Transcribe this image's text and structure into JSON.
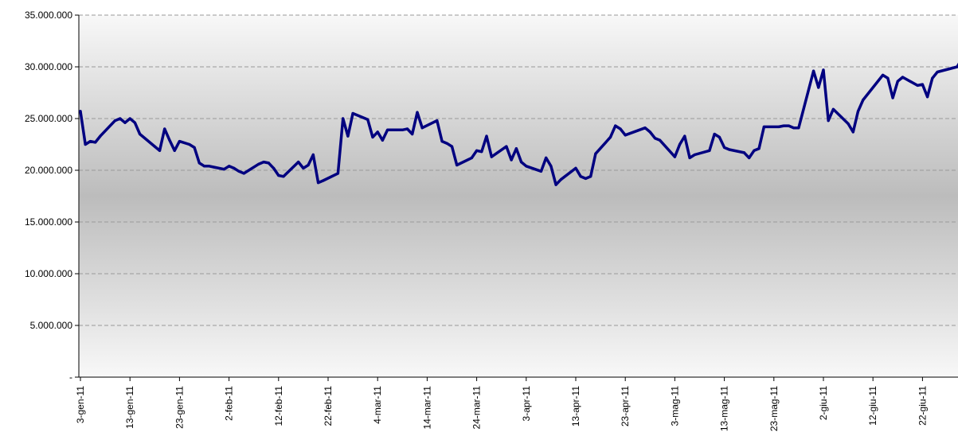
{
  "chart_data": {
    "type": "line",
    "title": "",
    "xlabel": "",
    "ylabel": "",
    "ylim": [
      0,
      35000000
    ],
    "y_ticks": [
      {
        "value": 0,
        "label": "-"
      },
      {
        "value": 5000000,
        "label": "5.000.000"
      },
      {
        "value": 10000000,
        "label": "10.000.000"
      },
      {
        "value": 15000000,
        "label": "15.000.000"
      },
      {
        "value": 20000000,
        "label": "20.000.000"
      },
      {
        "value": 25000000,
        "label": "25.000.000"
      },
      {
        "value": 30000000,
        "label": "30.000.000"
      },
      {
        "value": 35000000,
        "label": "35.000.000"
      }
    ],
    "x_range": [
      "2011-01-03",
      "2011-06-30"
    ],
    "x_ticks": [
      {
        "date": "2011-01-03",
        "label": "3-gen-11"
      },
      {
        "date": "2011-01-13",
        "label": "13-gen-11"
      },
      {
        "date": "2011-01-23",
        "label": "23-gen-11"
      },
      {
        "date": "2011-02-02",
        "label": "2-feb-11"
      },
      {
        "date": "2011-02-12",
        "label": "12-feb-11"
      },
      {
        "date": "2011-02-22",
        "label": "22-feb-11"
      },
      {
        "date": "2011-03-04",
        "label": "4-mar-11"
      },
      {
        "date": "2011-03-14",
        "label": "14-mar-11"
      },
      {
        "date": "2011-03-24",
        "label": "24-mar-11"
      },
      {
        "date": "2011-04-03",
        "label": "3-apr-11"
      },
      {
        "date": "2011-04-13",
        "label": "13-apr-11"
      },
      {
        "date": "2011-04-23",
        "label": "23-apr-11"
      },
      {
        "date": "2011-05-03",
        "label": "3-mag-11"
      },
      {
        "date": "2011-05-13",
        "label": "13-mag-11"
      },
      {
        "date": "2011-05-23",
        "label": "23-mag-11"
      },
      {
        "date": "2011-06-02",
        "label": "2-giu-11"
      },
      {
        "date": "2011-06-12",
        "label": "12-giu-11"
      },
      {
        "date": "2011-06-22",
        "label": "22-giu-11"
      }
    ],
    "grid": true,
    "colors": {
      "line": "#000080",
      "grid": "#9a9a9a",
      "axis": "#000000",
      "bg_edge": "#f8f8f8",
      "bg_center": "#bcbcbc"
    },
    "series": [
      {
        "points": [
          [
            "2011-01-03",
            25700000
          ],
          [
            "2011-01-04",
            22500000
          ],
          [
            "2011-01-05",
            22800000
          ],
          [
            "2011-01-06",
            22700000
          ],
          [
            "2011-01-07",
            23300000
          ],
          [
            "2011-01-10",
            24800000
          ],
          [
            "2011-01-11",
            25000000
          ],
          [
            "2011-01-12",
            24600000
          ],
          [
            "2011-01-13",
            25000000
          ],
          [
            "2011-01-14",
            24600000
          ],
          [
            "2011-01-15",
            23500000
          ],
          [
            "2011-01-18",
            22300000
          ],
          [
            "2011-01-19",
            21900000
          ],
          [
            "2011-01-20",
            24000000
          ],
          [
            "2011-01-21",
            22900000
          ],
          [
            "2011-01-22",
            21900000
          ],
          [
            "2011-01-23",
            22800000
          ],
          [
            "2011-01-25",
            22500000
          ],
          [
            "2011-01-26",
            22200000
          ],
          [
            "2011-01-27",
            20700000
          ],
          [
            "2011-01-28",
            20400000
          ],
          [
            "2011-01-29",
            20400000
          ],
          [
            "2011-01-30",
            20300000
          ],
          [
            "2011-02-01",
            20100000
          ],
          [
            "2011-02-02",
            20400000
          ],
          [
            "2011-02-03",
            20200000
          ],
          [
            "2011-02-04",
            19900000
          ],
          [
            "2011-02-05",
            19700000
          ],
          [
            "2011-02-08",
            20600000
          ],
          [
            "2011-02-09",
            20800000
          ],
          [
            "2011-02-10",
            20700000
          ],
          [
            "2011-02-11",
            20200000
          ],
          [
            "2011-02-12",
            19500000
          ],
          [
            "2011-02-13",
            19400000
          ],
          [
            "2011-02-16",
            20800000
          ],
          [
            "2011-02-17",
            20200000
          ],
          [
            "2011-02-18",
            20500000
          ],
          [
            "2011-02-19",
            21500000
          ],
          [
            "2011-02-20",
            18800000
          ],
          [
            "2011-02-21",
            19000000
          ],
          [
            "2011-02-24",
            19700000
          ],
          [
            "2011-02-25",
            25000000
          ],
          [
            "2011-02-26",
            23300000
          ],
          [
            "2011-02-27",
            25500000
          ],
          [
            "2011-03-02",
            24900000
          ],
          [
            "2011-03-03",
            23200000
          ],
          [
            "2011-03-04",
            23700000
          ],
          [
            "2011-03-05",
            22900000
          ],
          [
            "2011-03-06",
            23900000
          ],
          [
            "2011-03-09",
            23900000
          ],
          [
            "2011-03-10",
            24000000
          ],
          [
            "2011-03-11",
            23500000
          ],
          [
            "2011-03-12",
            25600000
          ],
          [
            "2011-03-13",
            24100000
          ],
          [
            "2011-03-16",
            24800000
          ],
          [
            "2011-03-17",
            22800000
          ],
          [
            "2011-03-18",
            22600000
          ],
          [
            "2011-03-19",
            22300000
          ],
          [
            "2011-03-20",
            20500000
          ],
          [
            "2011-03-23",
            21200000
          ],
          [
            "2011-03-24",
            21900000
          ],
          [
            "2011-03-25",
            21800000
          ],
          [
            "2011-03-26",
            23300000
          ],
          [
            "2011-03-27",
            21300000
          ],
          [
            "2011-03-30",
            22300000
          ],
          [
            "2011-03-31",
            21000000
          ],
          [
            "2011-04-01",
            22100000
          ],
          [
            "2011-04-02",
            20800000
          ],
          [
            "2011-04-03",
            20400000
          ],
          [
            "2011-04-06",
            19900000
          ],
          [
            "2011-04-07",
            21200000
          ],
          [
            "2011-04-08",
            20400000
          ],
          [
            "2011-04-09",
            18600000
          ],
          [
            "2011-04-10",
            19100000
          ],
          [
            "2011-04-13",
            20200000
          ],
          [
            "2011-04-14",
            19400000
          ],
          [
            "2011-04-15",
            19200000
          ],
          [
            "2011-04-16",
            19400000
          ],
          [
            "2011-04-17",
            21600000
          ],
          [
            "2011-04-20",
            23200000
          ],
          [
            "2011-04-21",
            24300000
          ],
          [
            "2011-04-22",
            24000000
          ],
          [
            "2011-04-23",
            23400000
          ],
          [
            "2011-04-27",
            24100000
          ],
          [
            "2011-04-28",
            23700000
          ],
          [
            "2011-04-29",
            23100000
          ],
          [
            "2011-04-30",
            22900000
          ],
          [
            "2011-05-03",
            21300000
          ],
          [
            "2011-05-04",
            22500000
          ],
          [
            "2011-05-05",
            23300000
          ],
          [
            "2011-05-06",
            21200000
          ],
          [
            "2011-05-07",
            21500000
          ],
          [
            "2011-05-10",
            21900000
          ],
          [
            "2011-05-11",
            23500000
          ],
          [
            "2011-05-12",
            23200000
          ],
          [
            "2011-05-13",
            22200000
          ],
          [
            "2011-05-14",
            22000000
          ],
          [
            "2011-05-17",
            21700000
          ],
          [
            "2011-05-18",
            21200000
          ],
          [
            "2011-05-19",
            21900000
          ],
          [
            "2011-05-20",
            22100000
          ],
          [
            "2011-05-21",
            24200000
          ],
          [
            "2011-05-24",
            24200000
          ],
          [
            "2011-05-25",
            24300000
          ],
          [
            "2011-05-26",
            24300000
          ],
          [
            "2011-05-27",
            24100000
          ],
          [
            "2011-05-28",
            24100000
          ],
          [
            "2011-05-31",
            29600000
          ],
          [
            "2011-06-01",
            28000000
          ],
          [
            "2011-06-02",
            29700000
          ],
          [
            "2011-06-03",
            24800000
          ],
          [
            "2011-06-04",
            25900000
          ],
          [
            "2011-06-07",
            24500000
          ],
          [
            "2011-06-08",
            23700000
          ],
          [
            "2011-06-09",
            25700000
          ],
          [
            "2011-06-10",
            26800000
          ],
          [
            "2011-06-14",
            29200000
          ],
          [
            "2011-06-15",
            28900000
          ],
          [
            "2011-06-16",
            27000000
          ],
          [
            "2011-06-17",
            28600000
          ],
          [
            "2011-06-18",
            29000000
          ],
          [
            "2011-06-21",
            28200000
          ],
          [
            "2011-06-22",
            28300000
          ],
          [
            "2011-06-23",
            27100000
          ],
          [
            "2011-06-24",
            28900000
          ],
          [
            "2011-06-25",
            29500000
          ],
          [
            "2011-06-29",
            30000000
          ],
          [
            "2011-06-30",
            30800000
          ]
        ]
      }
    ]
  }
}
